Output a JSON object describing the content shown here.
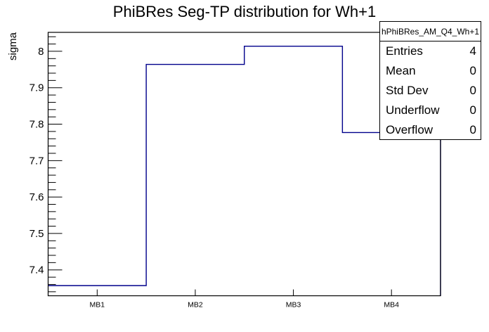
{
  "stats": {
    "title": "hPhiBRes_AM_Q4_Wh+1",
    "rows": [
      {
        "label": "Entries",
        "value": "4"
      },
      {
        "label": "Mean",
        "value": "0"
      },
      {
        "label": "Std Dev",
        "value": "0"
      },
      {
        "label": "Underflow",
        "value": "0"
      },
      {
        "label": "Overflow",
        "value": "0"
      }
    ]
  },
  "chart_data": {
    "type": "line",
    "subtype": "step-histogram",
    "title": "PhiBRes Seg-TP distribution for Wh+1",
    "xlabel": "",
    "ylabel": "sigma",
    "categories": [
      "MB1",
      "MB2",
      "MB3",
      "MB4"
    ],
    "values": [
      7.357,
      7.964,
      8.014,
      7.777
    ],
    "ylim": [
      7.329,
      8.052
    ],
    "y_major_ticks": [
      7.4,
      7.5,
      7.6,
      7.7,
      7.8,
      7.9,
      8.0
    ],
    "y_tick_labels": [
      "7.4",
      "7.5",
      "7.6",
      "7.7",
      "7.8",
      "7.9",
      "8"
    ],
    "y_minor_step": 0.02,
    "grid": false,
    "legend": "none",
    "line_color": "#00008b",
    "axis_color": "#000000"
  }
}
